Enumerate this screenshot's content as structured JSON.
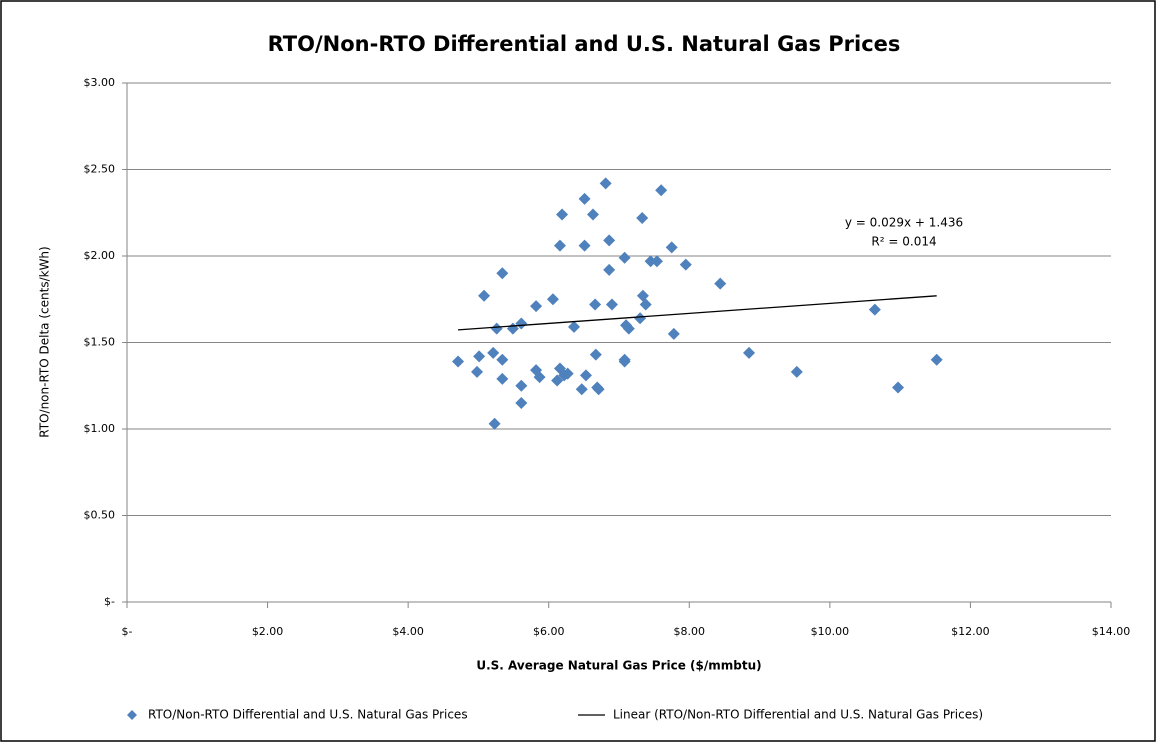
{
  "chart_data": {
    "type": "scatter",
    "title": "RTO/Non-RTO Differential and U.S. Natural Gas Prices",
    "xlabel": "U.S. Average Natural Gas Price ($/mmbtu)",
    "ylabel": "RTO/non-RTO Delta (cents/kWh)",
    "xlim": [
      0,
      14
    ],
    "ylim": [
      0,
      3
    ],
    "xticks": [
      {
        "value": 0,
        "label": "$-"
      },
      {
        "value": 2,
        "label": "$2.00"
      },
      {
        "value": 4,
        "label": "$4.00"
      },
      {
        "value": 6,
        "label": "$6.00"
      },
      {
        "value": 8,
        "label": "$8.00"
      },
      {
        "value": 10,
        "label": "$10.00"
      },
      {
        "value": 12,
        "label": "$12.00"
      },
      {
        "value": 14,
        "label": "$14.00"
      }
    ],
    "yticks": [
      {
        "value": 0,
        "label": "$-"
      },
      {
        "value": 0.5,
        "label": "$0.50"
      },
      {
        "value": 1,
        "label": "$1.00"
      },
      {
        "value": 1.5,
        "label": "$1.50"
      },
      {
        "value": 2,
        "label": "$2.00"
      },
      {
        "value": 2.5,
        "label": "$2.50"
      },
      {
        "value": 3,
        "label": "$3.00"
      }
    ],
    "grid": true,
    "legend": "bottom",
    "series": [
      {
        "name": "RTO/Non-RTO Differential and U.S. Natural Gas Prices",
        "color": "#4f81bd",
        "mode": "markers",
        "x": [
          4.71,
          5.01,
          4.98,
          5.08,
          5.21,
          5.23,
          5.26,
          5.34,
          5.34,
          5.34,
          5.49,
          5.61,
          5.61,
          5.61,
          5.82,
          5.82,
          5.87,
          6.06,
          6.12,
          6.16,
          6.19,
          6.16,
          6.22,
          6.27,
          6.36,
          6.47,
          6.51,
          6.51,
          6.53,
          6.63,
          6.66,
          6.67,
          6.69,
          6.71,
          6.81,
          6.86,
          6.86,
          6.9,
          7.08,
          7.1,
          7.08,
          7.08,
          7.14,
          7.3,
          7.33,
          7.34,
          7.38,
          7.45,
          7.54,
          7.6,
          7.75,
          7.78,
          7.95,
          8.44,
          8.85,
          9.53,
          10.64,
          10.97,
          11.52
        ],
        "values": [
          1.39,
          1.42,
          1.33,
          1.77,
          1.44,
          1.03,
          1.58,
          1.9,
          1.4,
          1.29,
          1.58,
          1.61,
          1.25,
          1.15,
          1.71,
          1.34,
          1.3,
          1.75,
          1.28,
          2.06,
          2.24,
          1.35,
          1.31,
          1.32,
          1.59,
          1.23,
          2.33,
          2.06,
          1.31,
          2.24,
          1.72,
          1.43,
          1.24,
          1.23,
          2.42,
          2.09,
          1.92,
          1.72,
          1.99,
          1.6,
          1.4,
          1.39,
          1.58,
          1.64,
          2.22,
          1.77,
          1.72,
          1.97,
          1.97,
          2.38,
          2.05,
          1.55,
          1.95,
          1.84,
          1.44,
          1.33,
          1.69,
          1.24,
          1.4
        ]
      },
      {
        "name": "Linear (RTO/Non-RTO Differential and U.S. Natural Gas Prices)",
        "color": "#000000",
        "mode": "line",
        "x": [
          4.71,
          11.52
        ],
        "values": [
          1.573,
          1.77
        ]
      }
    ],
    "annotations": [
      "y = 0.029x + 1.436",
      "R² = 0.014"
    ]
  }
}
